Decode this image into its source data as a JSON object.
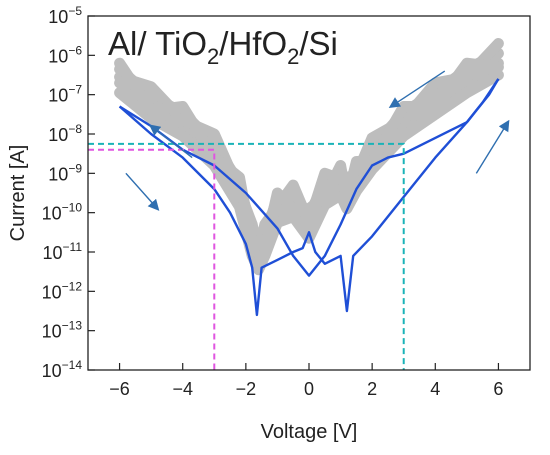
{
  "chart_data": {
    "type": "line",
    "title": "Al/ TiO2/HfO2/Si",
    "title_parts": {
      "p1": "Al/ TiO",
      "s1": "2",
      "p2": "/HfO",
      "s2": "2",
      "p3": "/Si"
    },
    "xlabel": "Voltage [V]",
    "ylabel": "Current [A]",
    "xlim": [
      -7,
      7
    ],
    "ylim_log10": [
      -14,
      -5
    ],
    "yscale": "log",
    "x_ticks": [
      -6,
      -4,
      -2,
      0,
      2,
      4,
      6
    ],
    "x_tick_labels": [
      "−6",
      "−4",
      "−2",
      "0",
      "2",
      "4",
      "6"
    ],
    "y_tick_exponents": [
      -14,
      -13,
      -12,
      -11,
      -10,
      -9,
      -8,
      -7,
      -6,
      -5
    ],
    "y_tick_base": "10",
    "y_tick_exp_labels": [
      "−14",
      "−13",
      "−12",
      "−11",
      "−10",
      "−9",
      "−8",
      "−7",
      "−6",
      "−5"
    ],
    "grid": false,
    "colors": {
      "bundle": "#bdbdbd",
      "main": "#1f4fd6",
      "cyan_guide": "#1ab3b8",
      "magenta_guide": "#e055e0",
      "arrows": "#2f6fb0"
    },
    "series": [
      {
        "role": "repeated sweeps (gray bundle)",
        "x": [
          -6,
          -5,
          -4,
          -3,
          -2.2,
          -1.8,
          -1.6,
          -1.4,
          -1,
          -0.5,
          0,
          0.5,
          1,
          1.2,
          1.5,
          2,
          3,
          4,
          5,
          6
        ],
        "y_log10": [
          -6.7,
          -7.3,
          -7.8,
          -8.5,
          -9.6,
          -10.8,
          -11.2,
          -10.8,
          -10.0,
          -9.8,
          -10.4,
          -9.5,
          -9.3,
          -9.6,
          -9.2,
          -8.6,
          -7.8,
          -7.2,
          -6.7,
          -6.2
        ]
      },
      {
        "role": "representative sweep (blue) - forward branch",
        "x": [
          -6,
          -5,
          -4,
          -3,
          -2.5,
          -2,
          -1.8,
          -1.65,
          -1.5,
          -1,
          -0.5,
          -0.2,
          0,
          0.2,
          0.5,
          1,
          1.2,
          1.4,
          2,
          3,
          4,
          5,
          5.5,
          6
        ],
        "y_log10": [
          -7.3,
          -8.0,
          -8.6,
          -9.4,
          -10.0,
          -10.8,
          -11.4,
          -12.6,
          -11.4,
          -11.2,
          -11.0,
          -10.9,
          -10.5,
          -11.0,
          -11.3,
          -11.1,
          -12.5,
          -11.1,
          -10.6,
          -9.6,
          -8.6,
          -7.7,
          -7.2,
          -6.6
        ]
      },
      {
        "role": "representative sweep (blue) - reverse branch",
        "x": [
          6,
          5.7,
          5.3,
          5,
          4.5,
          4,
          3.5,
          3,
          2.5,
          2,
          1.5,
          1,
          0.5,
          0,
          -0.5,
          -1,
          -2,
          -3,
          -4,
          -5,
          -6
        ],
        "y_log10": [
          -6.6,
          -7.0,
          -7.4,
          -7.7,
          -7.9,
          -8.1,
          -8.3,
          -8.5,
          -8.6,
          -8.8,
          -9.4,
          -10.3,
          -11.1,
          -11.6,
          -11.1,
          -10.4,
          -9.5,
          -8.8,
          -8.4,
          -7.8,
          -7.3
        ]
      }
    ],
    "annotations": {
      "cyan_point": {
        "x": 3,
        "y_log10": -8.25
      },
      "magenta_point": {
        "x": -3,
        "y_log10": -8.4
      }
    }
  }
}
